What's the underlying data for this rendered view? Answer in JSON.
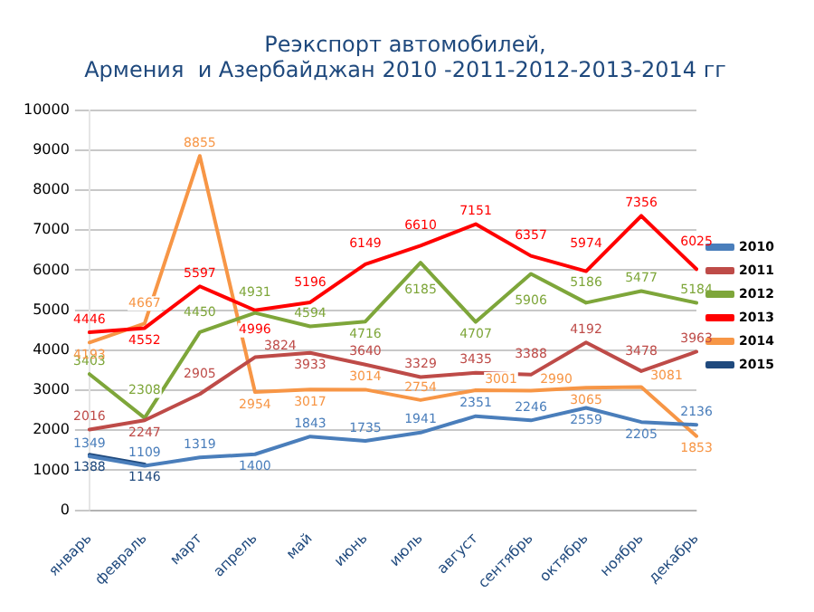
{
  "chart_data": {
    "type": "line",
    "title": "Реэкспорт автомобилей,\nАрмения  и Азербайджан 2010 -2011-2012-2013-2014 гг",
    "categories": [
      "январь",
      "февраль",
      "март",
      "апрель",
      "май",
      "июнь",
      "июль",
      "август",
      "сентябрь",
      "октябрь",
      "ноябрь",
      "декабрь"
    ],
    "series": [
      {
        "name": "2010",
        "color": "#4a7ebb",
        "values": [
          1349,
          1109,
          1319,
          1400,
          1843,
          1735,
          1941,
          2351,
          2246,
          2559,
          2205,
          2136
        ]
      },
      {
        "name": "2011",
        "color": "#be4b48",
        "values": [
          2016,
          2247,
          2905,
          3824,
          3933,
          3640,
          3329,
          3435,
          3388,
          4192,
          3478,
          3963
        ]
      },
      {
        "name": "2012",
        "color": "#7ea63a",
        "values": [
          3403,
          2308,
          4450,
          4931,
          4594,
          4716,
          6185,
          4707,
          5906,
          5186,
          5477,
          5184
        ]
      },
      {
        "name": "2013",
        "color": "#ff0000",
        "values": [
          4446,
          4552,
          5597,
          4996,
          5196,
          6149,
          6610,
          7151,
          6357,
          5974,
          7356,
          6025
        ]
      },
      {
        "name": "2014",
        "color": "#f79646",
        "values": [
          4193,
          4667,
          8855,
          2954,
          3017,
          3014,
          2754,
          3001,
          2990,
          3065,
          3081,
          1853
        ]
      },
      {
        "name": "2015",
        "color": "#1f497d",
        "values": [
          1388,
          1146,
          null,
          null,
          null,
          null,
          null,
          null,
          null,
          null,
          null,
          null
        ]
      }
    ],
    "ylim": [
      0,
      10000
    ],
    "yticks": [
      0,
      1000,
      2000,
      3000,
      4000,
      5000,
      6000,
      7000,
      8000,
      9000,
      10000
    ],
    "grid": "y",
    "legend": "right",
    "marker": "none",
    "line_style": "solid",
    "data_labels": true
  }
}
